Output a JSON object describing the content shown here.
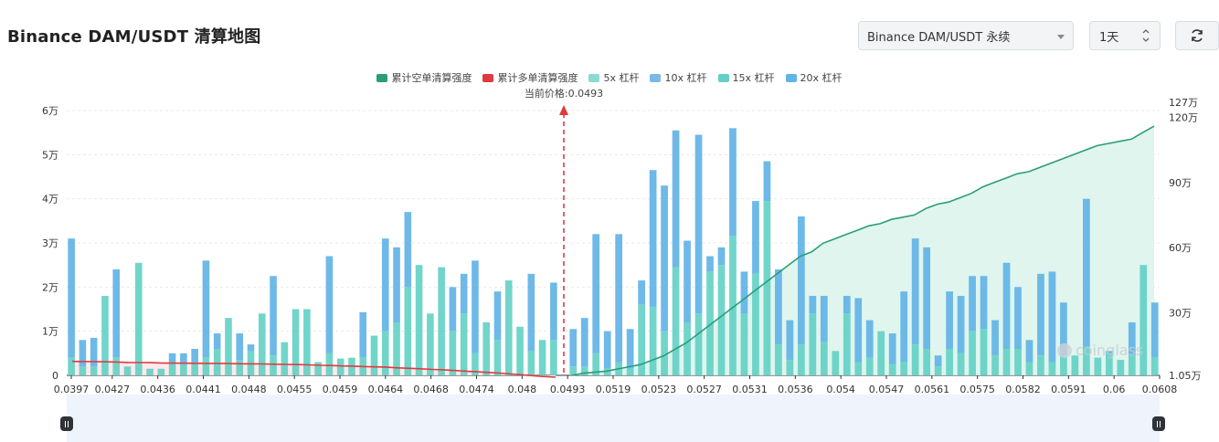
{
  "page": {
    "title": "Binance DAM/USDT 清算地图",
    "pair_select": "Binance DAM/USDT 永续",
    "period_select": "1天",
    "icons": {
      "refresh": "refresh-icon",
      "caret": "chevron-down-icon",
      "updown": "up-down-arrows-icon"
    },
    "watermark": "coinglass"
  },
  "chart_data": {
    "type": "bar",
    "legend": [
      {
        "name": "累计空单清算强度",
        "color": "#2a9d78"
      },
      {
        "name": "累计多单清算强度",
        "color": "#e0393e"
      },
      {
        "name": "5x 杠杆",
        "color": "#89dbd1"
      },
      {
        "name": "10x 杠杆",
        "color": "#7ab9e5"
      },
      {
        "name": "15x 杠杆",
        "color": "#62d0c4"
      },
      {
        "name": "20x 杠杆",
        "color": "#62b3e6"
      }
    ],
    "current_price_label": "当前价格:0.0493",
    "current_price": 0.0493,
    "x_ticks": [
      "0.0397",
      "0.0427",
      "0.0436",
      "0.0441",
      "0.0448",
      "0.0455",
      "0.0459",
      "0.0464",
      "0.0468",
      "0.0474",
      "0.048",
      "0.0493",
      "0.0519",
      "0.0523",
      "0.0527",
      "0.0531",
      "0.0536",
      "0.054",
      "0.0547",
      "0.0561",
      "0.0575",
      "0.0582",
      "0.0591",
      "0.06",
      "0.0608"
    ],
    "left_axis": {
      "ticks": [
        "0",
        "1万",
        "2万",
        "3万",
        "4万",
        "5万",
        "6万"
      ],
      "ylim": [
        0,
        60000
      ]
    },
    "right_axis": {
      "ticks": [
        "1.05万",
        "30万",
        "60万",
        "90万",
        "120万",
        "127万"
      ],
      "ylim": [
        10500,
        1270000
      ]
    },
    "bars_left": {
      "totals": [
        31000,
        8000,
        8500,
        18000,
        24000,
        2000,
        25500,
        1500,
        1500,
        5000,
        5000,
        6000,
        26000,
        9500,
        13000,
        9500,
        7000,
        14000,
        22500,
        7500,
        15000,
        15000,
        3000,
        27000,
        3800,
        4000,
        14300,
        9000,
        31000,
        29000,
        37000,
        25000,
        14000,
        24500,
        20000,
        23000,
        26000,
        12000,
        19000,
        21500,
        11000,
        23000,
        8000,
        21000
      ],
      "lower": [
        4000,
        2000,
        2000,
        18000,
        4000,
        2000,
        25500,
        1500,
        1500,
        3000,
        3000,
        3000,
        4000,
        6000,
        13000,
        3500,
        5500,
        14000,
        4500,
        7500,
        15000,
        15000,
        3000,
        5000,
        3800,
        4000,
        4000,
        9000,
        10000,
        12000,
        20000,
        25000,
        14000,
        24500,
        10000,
        14000,
        5000,
        12000,
        8000,
        21500,
        11000,
        5500,
        8000,
        8000
      ]
    },
    "bars_right": {
      "totals": [
        10500,
        13000,
        32000,
        10000,
        32000,
        10500,
        21500,
        46500,
        43000,
        55500,
        30500,
        54500,
        27000,
        29000,
        56000,
        23500,
        39500,
        48500,
        24000,
        12500,
        36000,
        18000,
        18000,
        5500,
        18000,
        17500,
        12500,
        10000,
        9500,
        19000,
        31000,
        29000,
        4500,
        19000,
        18000,
        22500,
        22500,
        12500,
        25500,
        20000,
        8000,
        23000,
        23500,
        16500,
        4500,
        40000,
        4000,
        5500,
        3500,
        12000,
        25000,
        16500
      ],
      "lower": [
        2000,
        2000,
        5000,
        1500,
        3000,
        1500,
        16000,
        15500,
        10000,
        24500,
        12000,
        14000,
        23500,
        25000,
        31500,
        14000,
        23000,
        39500,
        7000,
        3500,
        7000,
        14000,
        7500,
        5500,
        14000,
        3000,
        4000,
        10000,
        2500,
        3000,
        7000,
        6000,
        2000,
        6000,
        5000,
        10000,
        10500,
        4500,
        6000,
        6000,
        3000,
        4500,
        3000,
        4500,
        4500,
        6500,
        4000,
        5000,
        3500,
        4500,
        25000,
        4000
      ]
    },
    "long_cumulative": [
      75000,
      74000,
      73500,
      73000,
      72000,
      70000,
      69500,
      69000,
      67000,
      66800,
      66500,
      66000,
      65800,
      65500,
      65000,
      64000,
      63500,
      63000,
      62000,
      61000,
      60000,
      59000,
      57000,
      56000,
      54000,
      53000,
      51000,
      49500,
      48000,
      45000,
      43000,
      41000,
      38000,
      36000,
      33000,
      30000,
      27000,
      24000,
      21000,
      17000,
      13000,
      9000,
      5000,
      2000
    ],
    "short_cumulative": [
      10500,
      20000,
      25000,
      30000,
      40000,
      50000,
      60000,
      80000,
      100000,
      130000,
      160000,
      200000,
      240000,
      280000,
      320000,
      360000,
      400000,
      440000,
      480000,
      520000,
      560000,
      580000,
      620000,
      640000,
      660000,
      680000,
      700000,
      710000,
      730000,
      740000,
      750000,
      780000,
      800000,
      810000,
      830000,
      850000,
      880000,
      900000,
      920000,
      940000,
      950000,
      970000,
      990000,
      1010000,
      1030000,
      1050000,
      1070000,
      1080000,
      1090000,
      1100000,
      1130000,
      1160000
    ]
  }
}
